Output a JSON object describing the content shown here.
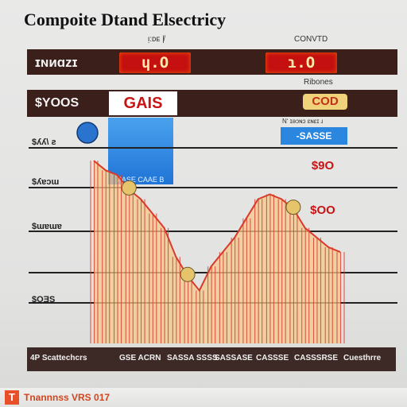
{
  "header": {
    "title": "Compoite Dtand Elsectricy",
    "small_top_left": "ᴉ:ᴅᴇ |̸",
    "small_top_right": "CONVTD",
    "left_tag": "ɪɴᴎɑᴢɪ",
    "led_left": "ɥ.O",
    "led_right": "ɿ.O",
    "row2_left": "$YOOS",
    "gas_label": "GAIS",
    "right_small": "Ribones",
    "orange_badge": "COD",
    "note_label": "Nʻ ɪəɔɴɔ ɛɴɛɪ ɹ",
    "blue_strip": "-SASSE",
    "blue_box_label": "PASE CAAE B"
  },
  "right_values": [
    "$9O",
    "$OO"
  ],
  "colors": {
    "dark_band": "#3b1f1a",
    "led_red": "#c41010",
    "area_fill": "#f4c98c",
    "area_stroke": "#d93a2a",
    "blue": "#1f74d6"
  },
  "footer": {
    "cells": [
      "4P Scattechcrs",
      "GSE ACRN",
      "SASSA SSSS",
      "SASSASE",
      "CASSSE",
      "CASSSRSE",
      "Cuesthrre"
    ]
  },
  "bottom_bar": {
    "logo": "T",
    "text": "Tnannnss VRS 017"
  },
  "chart_data": {
    "type": "area",
    "title": "Compoite Dtand Elsectricy",
    "ylabels": [
      "$ʎʎ\\ ƨ",
      "$ʎɐɔɯ",
      "$ɯɐɯɐ",
      "$OƎS"
    ],
    "x": [
      0,
      1,
      2,
      3,
      4,
      5,
      6,
      7,
      8,
      9,
      10,
      11,
      12,
      13,
      14,
      15,
      16,
      17,
      18,
      19,
      20,
      21
    ],
    "values": [
      190,
      180,
      175,
      160,
      150,
      135,
      120,
      90,
      70,
      55,
      80,
      95,
      110,
      130,
      150,
      155,
      150,
      140,
      120,
      110,
      100,
      95
    ],
    "bumps": [
      3,
      8,
      17
    ],
    "ylim": [
      0,
      200
    ],
    "xlabel": "",
    "ylabel": ""
  }
}
